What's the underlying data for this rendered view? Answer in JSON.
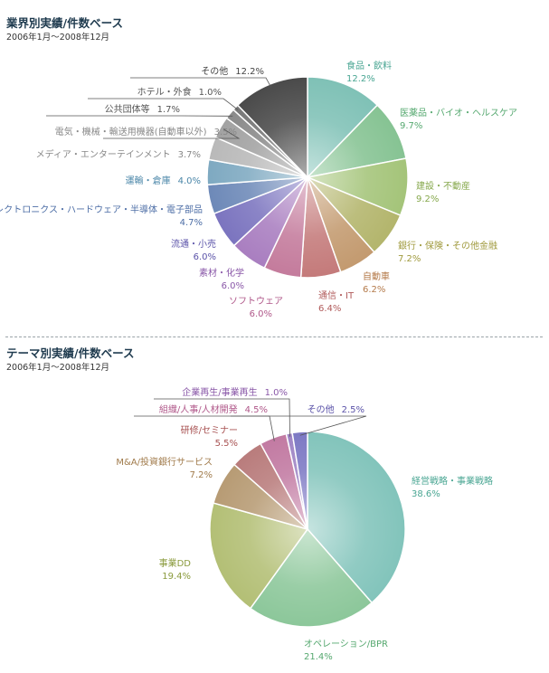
{
  "panels": [
    {
      "title": "業界別実績/件数ベース",
      "subtitle": "2006年1月〜2008年12月"
    },
    {
      "title": "テーマ別実績/件数ベース",
      "subtitle": "2006年1月〜2008年12月"
    }
  ],
  "chart_data": [
    {
      "type": "pie",
      "title": "業界別実績/件数ベース",
      "subtitle": "2006年1月〜2008年12月",
      "categories": [
        "食品・飲料",
        "医薬品・バイオ・ヘルスケア",
        "建設・不動産",
        "銀行・保険・その他金融",
        "自動車",
        "通信・IT",
        "ソフトウェア",
        "素材・化学",
        "流通・小売",
        "エレクトロニクス・ハードウェア・半導体・電子部品",
        "運輸・倉庫",
        "メディア・エンターテインメント",
        "電気・機械・輸送用機器(自動車以外)",
        "公共団体等",
        "ホテル・外食",
        "その他"
      ],
      "values": [
        12.2,
        9.7,
        9.2,
        7.2,
        6.2,
        6.4,
        6.0,
        6.0,
        6.0,
        4.7,
        4.0,
        3.7,
        3.5,
        1.7,
        1.0,
        12.2
      ],
      "value_labels": [
        "12.2%",
        "9.7%",
        "9.2%",
        "7.2%",
        "6.2%",
        "6.4%",
        "6.0%",
        "6.0%",
        "6.0%",
        "4.7%",
        "4.0%",
        "3.7%",
        "3.5%",
        "1.7%",
        "1.0%",
        "12.2%"
      ],
      "colors": [
        "#7fc1b6",
        "#86c393",
        "#a4c479",
        "#b3b56c",
        "#c39a6f",
        "#c47a7a",
        "#c47b9c",
        "#a97ec0",
        "#7b74bf",
        "#6d89b8",
        "#7ea9c1",
        "#b9b9b9",
        "#a2a2a2",
        "#8a8a8a",
        "#777777",
        "#4a4a4a"
      ],
      "label_colors": [
        "#4aa693",
        "#55a86f",
        "#86a84c",
        "#a09a3e",
        "#b47a4a",
        "#b05a5a",
        "#b0588a",
        "#8a58a8",
        "#5a52a8",
        "#4d6ea6",
        "#4a86a8",
        "#888888",
        "#888888",
        "#555555",
        "#555555",
        "#444444"
      ]
    },
    {
      "type": "pie",
      "title": "テーマ別実績/件数ベース",
      "subtitle": "2006年1月〜2008年12月",
      "categories": [
        "経営戦略・事業戦略",
        "オペレーション/BPR",
        "事業DD",
        "M&A/投資銀行サービス",
        "研修/セミナー",
        "組織/人事/人材開発",
        "企業再生/事業再生",
        "その他"
      ],
      "values": [
        38.6,
        21.4,
        19.4,
        7.2,
        5.5,
        4.5,
        1.0,
        2.5
      ],
      "value_labels": [
        "38.6%",
        "21.4%",
        "19.4%",
        "7.2%",
        "5.5%",
        "4.5%",
        "1.0%",
        "2.5%"
      ],
      "colors": [
        "#82c4bb",
        "#8cc79a",
        "#b3bf75",
        "#b79b74",
        "#b97c7c",
        "#c27aa2",
        "#9f85c5",
        "#7d79c4"
      ],
      "label_colors": [
        "#4aa693",
        "#55a86f",
        "#8a9a3c",
        "#a07a4a",
        "#a85252",
        "#b0588a",
        "#8a58a8",
        "#5a52a8"
      ]
    }
  ]
}
